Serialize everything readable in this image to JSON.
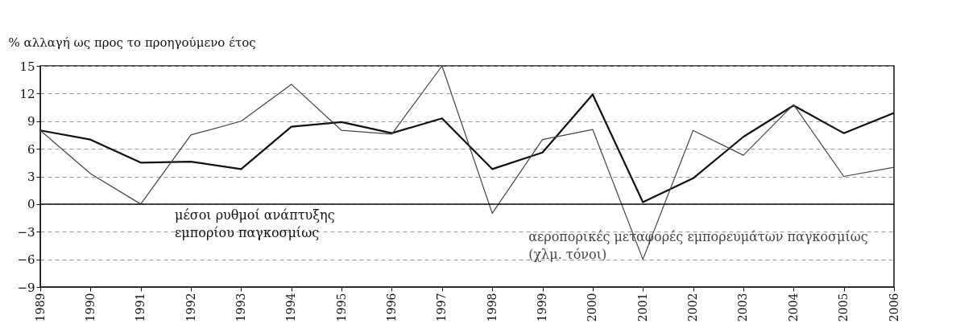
{
  "chart_data": {
    "type": "line",
    "ylabel": "% αλλαγή ως προς το προηγούμενο έτος",
    "categories": [
      "1989",
      "1990",
      "1991",
      "1992",
      "1993",
      "1994",
      "1995",
      "1996",
      "1997",
      "1998",
      "1999",
      "2000",
      "2001",
      "2002",
      "2003",
      "2004",
      "2005",
      "2006"
    ],
    "series": [
      {
        "name": "μέσοι ρυθμοί ανάπτυξης εμπορίου παγκοσμίως",
        "color": "#111111",
        "values": [
          8,
          7,
          4.5,
          4.6,
          3.8,
          8.4,
          8.9,
          7.7,
          9.3,
          3.8,
          5.6,
          11.9,
          0.2,
          2.8,
          7.3,
          10.7,
          7.7,
          9.9
        ]
      },
      {
        "name": "αεροπορικές μεταφορές εμπορευμάτων παγκοσμίως (χλμ. τόνοι)",
        "color": "#444444",
        "values": [
          8,
          3.3,
          0,
          7.5,
          9,
          13,
          8,
          7.6,
          15,
          -1,
          7,
          8.1,
          -6,
          8,
          5.3,
          10.8,
          3,
          4
        ]
      }
    ],
    "ylim": [
      -9,
      15
    ],
    "yticks": [
      -9,
      -6,
      -3,
      0,
      3,
      6,
      9,
      12,
      15
    ],
    "ref_lines": [
      {
        "axis": "y",
        "value": 0,
        "color": "#111111",
        "line_style": "solid"
      }
    ],
    "grid": "y",
    "legend": false,
    "marker": "none",
    "line_style": "solid"
  }
}
